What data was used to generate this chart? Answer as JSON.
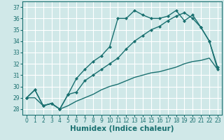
{
  "title": "",
  "xlabel": "Humidex (Indice chaleur)",
  "ylabel": "",
  "bg_color": "#d0e8e8",
  "grid_color": "#ffffff",
  "line_color": "#1a7070",
  "xlim": [
    -0.5,
    23.5
  ],
  "ylim": [
    27.5,
    37.5
  ],
  "xticks": [
    0,
    1,
    2,
    3,
    4,
    5,
    6,
    7,
    8,
    9,
    10,
    11,
    12,
    13,
    14,
    15,
    16,
    17,
    18,
    19,
    20,
    21,
    22,
    23
  ],
  "yticks": [
    28,
    29,
    30,
    31,
    32,
    33,
    34,
    35,
    36,
    37
  ],
  "line1_x": [
    0,
    1,
    2,
    3,
    4,
    5,
    6,
    7,
    8,
    9,
    10,
    11,
    12,
    13,
    14,
    15,
    16,
    17,
    18,
    19,
    20,
    21,
    22,
    23
  ],
  "line1_y": [
    29.0,
    29.7,
    28.3,
    28.5,
    28.0,
    29.3,
    30.7,
    31.5,
    32.2,
    32.7,
    33.5,
    36.0,
    36.0,
    36.7,
    36.3,
    36.0,
    36.0,
    36.2,
    36.7,
    35.8,
    36.3,
    35.2,
    34.0,
    31.7
  ],
  "line2_x": [
    0,
    1,
    2,
    3,
    4,
    5,
    6,
    7,
    8,
    9,
    10,
    11,
    12,
    13,
    14,
    15,
    16,
    17,
    18,
    19,
    20,
    21,
    22,
    23
  ],
  "line2_y": [
    29.0,
    29.7,
    28.3,
    28.5,
    28.0,
    29.3,
    29.5,
    30.5,
    31.0,
    31.5,
    32.0,
    32.5,
    33.3,
    34.0,
    34.5,
    35.0,
    35.3,
    35.8,
    36.2,
    36.5,
    36.0,
    35.2,
    34.0,
    31.5
  ],
  "line3_x": [
    0,
    1,
    2,
    3,
    4,
    5,
    6,
    7,
    8,
    9,
    10,
    11,
    12,
    13,
    14,
    15,
    16,
    17,
    18,
    19,
    20,
    21,
    22,
    23
  ],
  "line3_y": [
    29.0,
    29.0,
    28.3,
    28.5,
    28.0,
    28.3,
    28.7,
    29.0,
    29.3,
    29.7,
    30.0,
    30.2,
    30.5,
    30.8,
    31.0,
    31.2,
    31.3,
    31.5,
    31.7,
    32.0,
    32.2,
    32.3,
    32.5,
    31.5
  ],
  "marker_size": 2.5,
  "line_width": 1.0,
  "tick_fontsize": 5.5,
  "xlabel_fontsize": 7.5
}
